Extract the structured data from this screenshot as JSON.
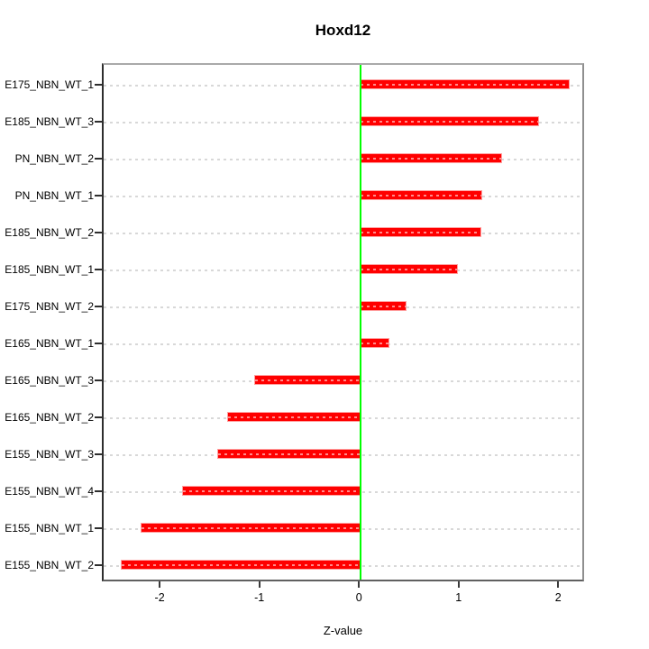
{
  "title": "Hoxd12",
  "chart_data": {
    "type": "bar",
    "orientation": "horizontal",
    "title": "Hoxd12",
    "xlabel": "Z-value",
    "categories": [
      "E175_NBN_WT_1",
      "E185_NBN_WT_3",
      "PN_NBN_WT_2",
      "PN_NBN_WT_1",
      "E185_NBN_WT_2",
      "E185_NBN_WT_1",
      "E175_NBN_WT_2",
      "E165_NBN_WT_1",
      "E165_NBN_WT_3",
      "E165_NBN_WT_2",
      "E155_NBN_WT_3",
      "E155_NBN_WT_4",
      "E155_NBN_WT_1",
      "E155_NBN_WT_2"
    ],
    "values": [
      2.09,
      1.78,
      1.41,
      1.21,
      1.2,
      0.97,
      0.45,
      0.28,
      -1.06,
      -1.33,
      -1.43,
      -1.78,
      -2.2,
      -2.4
    ],
    "xticks": [
      -2,
      -1,
      0,
      1,
      2
    ],
    "xtick_labels": [
      "-2",
      "-1",
      "0",
      "1",
      "2"
    ],
    "xlim": [
      -2.58,
      2.26
    ],
    "grid": true,
    "colors": {
      "bar_fill": "#ff0000",
      "bar_edge": "#ffa0a0",
      "zero_line": "#00ff00",
      "gridline": "#d8d8d8",
      "box": "#8f8f8f",
      "text": "#000000"
    }
  }
}
